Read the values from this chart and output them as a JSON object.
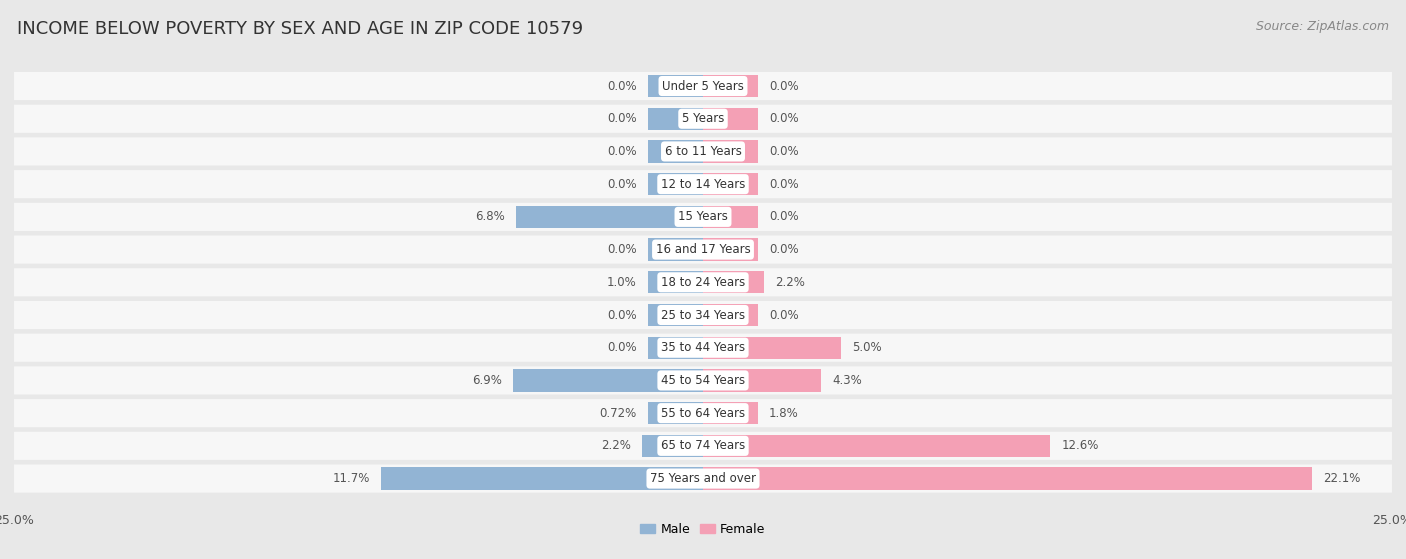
{
  "title": "INCOME BELOW POVERTY BY SEX AND AGE IN ZIP CODE 10579",
  "source": "Source: ZipAtlas.com",
  "categories": [
    "Under 5 Years",
    "5 Years",
    "6 to 11 Years",
    "12 to 14 Years",
    "15 Years",
    "16 and 17 Years",
    "18 to 24 Years",
    "25 to 34 Years",
    "35 to 44 Years",
    "45 to 54 Years",
    "55 to 64 Years",
    "65 to 74 Years",
    "75 Years and over"
  ],
  "male_values": [
    0.0,
    0.0,
    0.0,
    0.0,
    6.8,
    0.0,
    1.0,
    0.0,
    0.0,
    6.9,
    0.72,
    2.2,
    11.7
  ],
  "female_values": [
    0.0,
    0.0,
    0.0,
    0.0,
    0.0,
    0.0,
    2.2,
    0.0,
    5.0,
    4.3,
    1.8,
    12.6,
    22.1
  ],
  "male_color": "#92b4d4",
  "female_color": "#f4a0b5",
  "male_label": "Male",
  "female_label": "Female",
  "xlim": 25.0,
  "background_color": "#e8e8e8",
  "row_background": "#f7f7f7",
  "title_fontsize": 13,
  "source_fontsize": 9,
  "label_fontsize": 8.5,
  "value_fontsize": 8.5,
  "axis_label_fontsize": 9,
  "min_bar_val": 2.0
}
